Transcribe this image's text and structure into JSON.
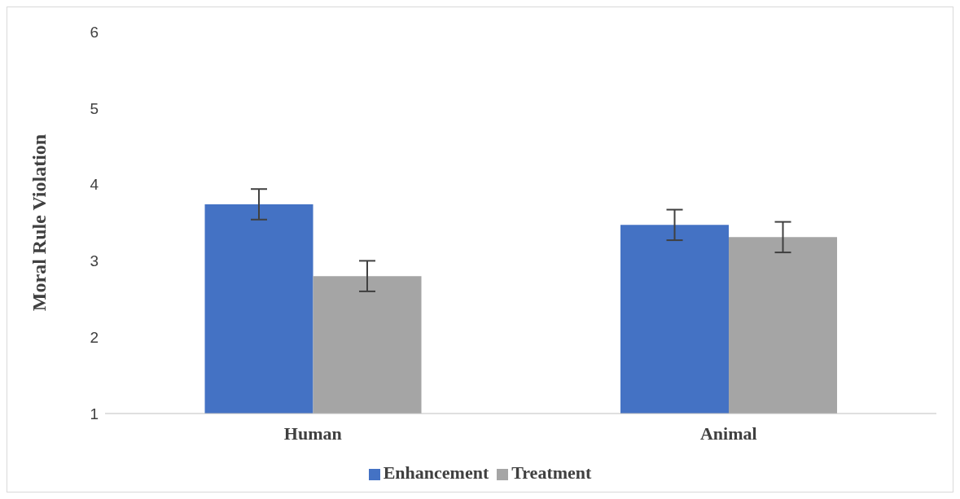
{
  "chart_data": {
    "type": "bar",
    "ylabel": "Moral Rule Violation",
    "categories": [
      "Human",
      "Animal"
    ],
    "series": [
      {
        "name": "Enhancement",
        "color": "#4472c4",
        "values": [
          3.74,
          3.47
        ],
        "errors": [
          0.2,
          0.2
        ]
      },
      {
        "name": "Treatment",
        "color": "#a5a5a5",
        "values": [
          2.8,
          3.31
        ],
        "errors": [
          0.2,
          0.2
        ]
      }
    ],
    "ylim": [
      1,
      6
    ],
    "yticks": [
      1,
      2,
      3,
      4,
      5,
      6
    ],
    "grid": false,
    "legend": "bottom"
  }
}
